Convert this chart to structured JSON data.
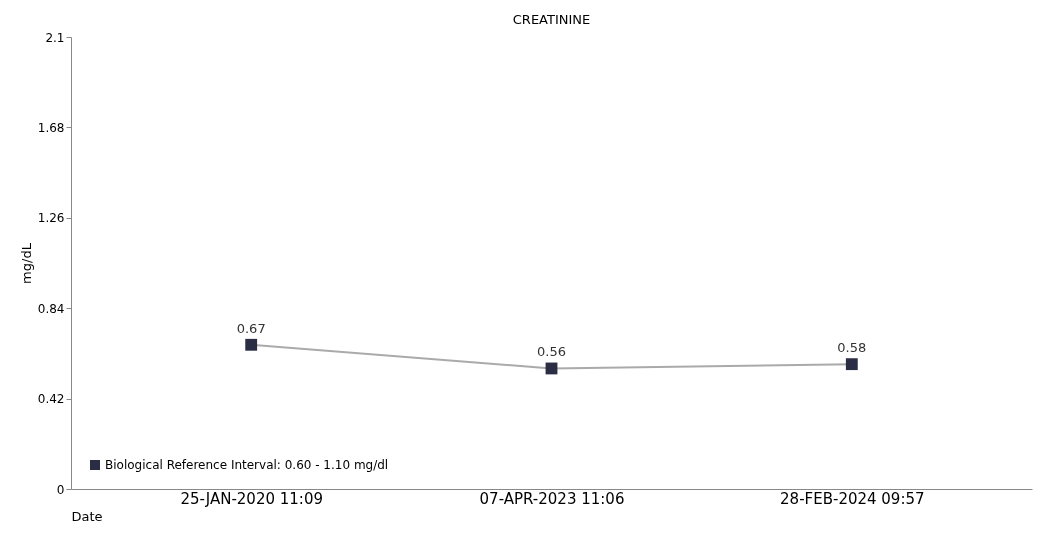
{
  "chart_data": {
    "type": "line",
    "title": "CREATININE",
    "xlabel": "Date",
    "ylabel": "mg/dL",
    "categories": [
      "25-JAN-2020 11:09",
      "07-APR-2023 11:06",
      "28-FEB-2024 09:57"
    ],
    "series": [
      {
        "name": "Biological Reference Interval: 0.60 - 1.10 mg/dl",
        "color": "#2b2d45",
        "values": [
          0.67,
          0.56,
          0.58
        ]
      }
    ],
    "ylim": [
      0,
      2.1
    ],
    "yticks": [
      0,
      0.42,
      0.84,
      1.26,
      1.68,
      2.1
    ],
    "data_labels": true,
    "marker": "square",
    "legend": "bottom left",
    "grid": false
  }
}
